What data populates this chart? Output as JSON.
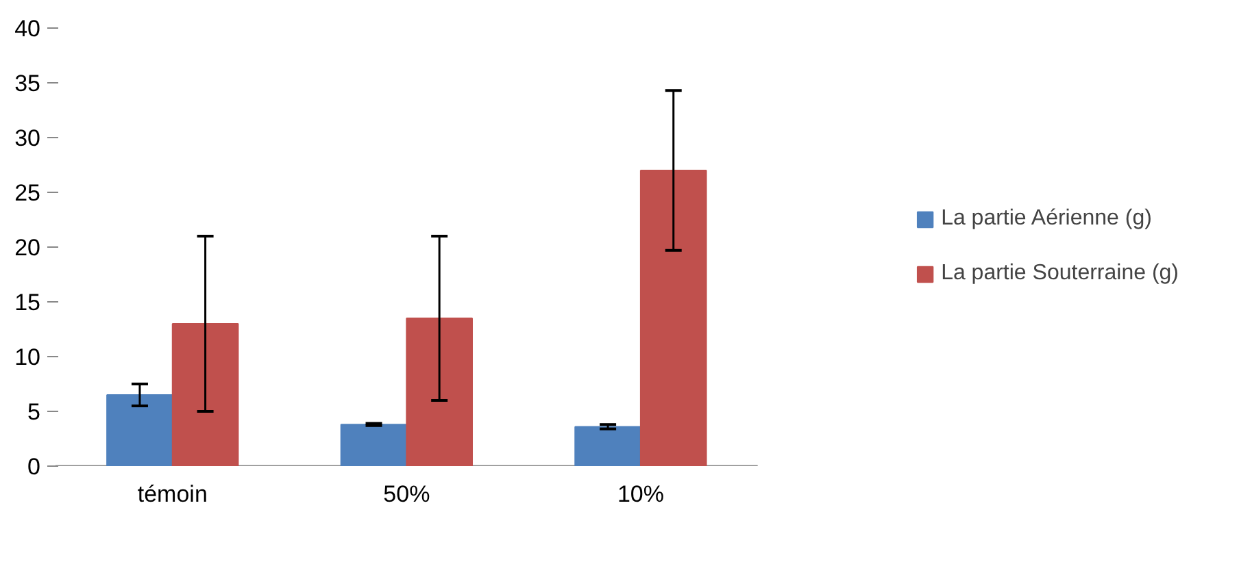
{
  "chart_data": {
    "type": "bar",
    "categories": [
      "témoin",
      "50%",
      "10%"
    ],
    "series": [
      {
        "name": "La partie Aérienne (g)",
        "color": "#4f81bd",
        "values": [
          6.5,
          3.8,
          3.6
        ],
        "errors": [
          1.0,
          0.1,
          0.2
        ]
      },
      {
        "name": "La partie Souterraine (g)",
        "color": "#c0504d",
        "values": [
          13.0,
          13.5,
          27.0
        ],
        "errors": [
          8.0,
          7.5,
          7.3
        ]
      }
    ],
    "ylim": [
      0,
      40
    ],
    "yticks": [
      0,
      5,
      10,
      15,
      20,
      25,
      30,
      35,
      40
    ],
    "grid": false,
    "legend": "right"
  }
}
